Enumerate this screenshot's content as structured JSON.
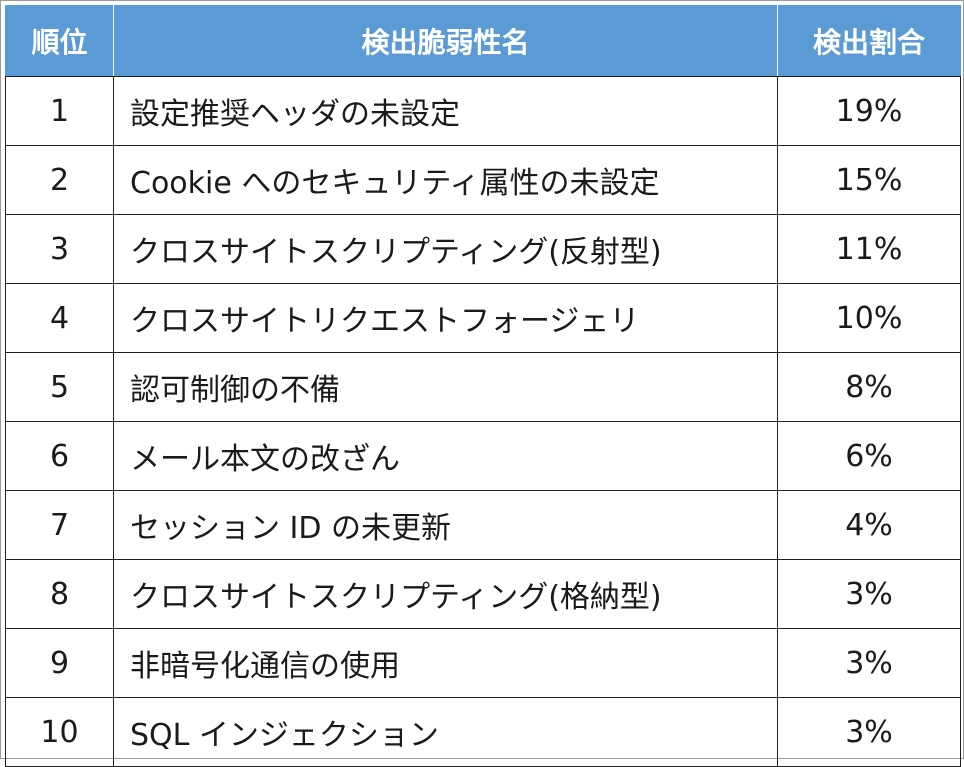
{
  "headers": {
    "rank": "順位",
    "name": "検出脆弱性名",
    "rate": "検出割合"
  },
  "rows": [
    {
      "rank": "1",
      "name": "設定推奨ヘッダの未設定",
      "rate": "19%"
    },
    {
      "rank": "2",
      "name": "Cookie へのセキュリティ属性の未設定",
      "rate": "15%"
    },
    {
      "rank": "3",
      "name": "クロスサイトスクリプティング(反射型)",
      "rate": "11%"
    },
    {
      "rank": "4",
      "name": "クロスサイトリクエストフォージェリ",
      "rate": "10%"
    },
    {
      "rank": "5",
      "name": "認可制御の不備",
      "rate": "8%"
    },
    {
      "rank": "6",
      "name": "メール本文の改ざん",
      "rate": "6%"
    },
    {
      "rank": "7",
      "name": "セッション ID の未更新",
      "rate": "4%"
    },
    {
      "rank": "8",
      "name": "クロスサイトスクリプティング(格納型)",
      "rate": "3%"
    },
    {
      "rank": "9",
      "name": "非暗号化通信の使用",
      "rate": "3%"
    },
    {
      "rank": "10",
      "name": "SQL インジェクション",
      "rate": "3%"
    }
  ],
  "colors": {
    "header_background": "#5b9bd5",
    "header_text": "#ffffff",
    "grid_line": "#1f1f1f"
  }
}
